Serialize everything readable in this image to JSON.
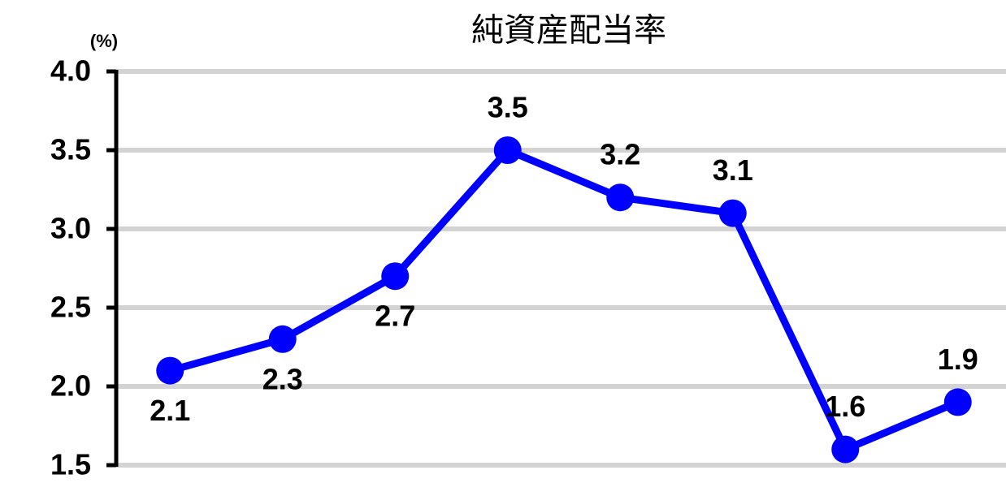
{
  "chart_data": {
    "type": "line",
    "title": "純資産配当率",
    "y_label": "(%)",
    "categories": [
      null,
      null,
      null,
      null,
      null,
      null,
      null,
      null
    ],
    "series": [
      {
        "name": null,
        "color": "#0000ff",
        "values": [
          2.1,
          2.3,
          2.7,
          3.5,
          3.2,
          3.1,
          1.6,
          1.9
        ]
      }
    ],
    "ylim": [
      1.5,
      4.0
    ],
    "yticks": [
      1.5,
      {
        "value": 2,
        "label": "2.0"
      },
      2.5,
      {
        "value": 3,
        "label": "3.0"
      },
      3.5,
      {
        "value": 4,
        "label": "4.0"
      }
    ],
    "grid": true
  }
}
